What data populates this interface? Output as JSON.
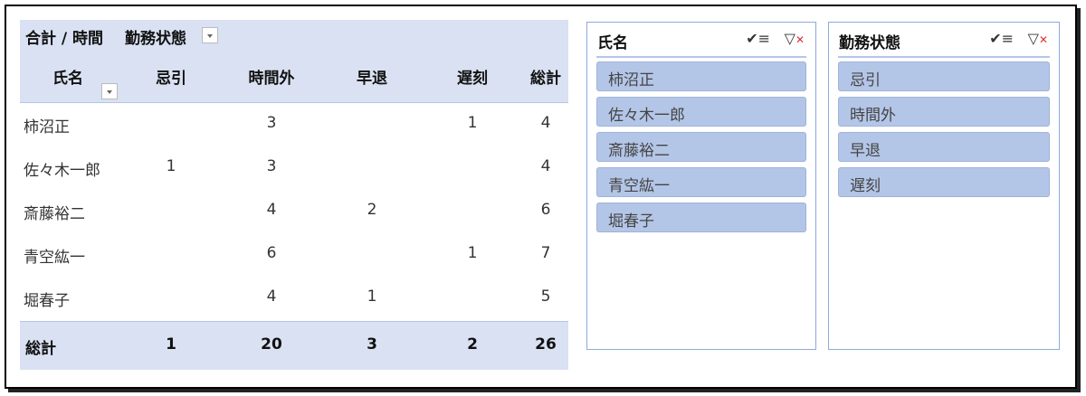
{
  "pivot": {
    "value_label": "合計 / 時間",
    "column_field": "勤務状態",
    "row_field": "氏名",
    "columns": [
      "忌引",
      "時間外",
      "早退",
      "遅刻",
      "総計"
    ],
    "rows": [
      {
        "name": "柿沼正",
        "values": [
          "",
          "3",
          "",
          "1",
          "4"
        ]
      },
      {
        "name": "佐々木一郎",
        "values": [
          "1",
          "3",
          "",
          "",
          "4"
        ]
      },
      {
        "name": "斎藤裕二",
        "values": [
          "",
          "4",
          "2",
          "",
          "6"
        ]
      },
      {
        "name": "青空紘一",
        "values": [
          "",
          "6",
          "",
          "1",
          "7"
        ]
      },
      {
        "name": "堀春子",
        "values": [
          "",
          "4",
          "1",
          "",
          "5"
        ]
      }
    ],
    "total_label": "総計",
    "totals": [
      "1",
      "20",
      "3",
      "2",
      "26"
    ]
  },
  "slicers": [
    {
      "title": "氏名",
      "items": [
        "柿沼正",
        "佐々木一郎",
        "斎藤裕二",
        "青空紘一",
        "堀春子"
      ]
    },
    {
      "title": "勤務状態",
      "items": [
        "忌引",
        "時間外",
        "早退",
        "遅刻"
      ]
    }
  ],
  "icons": {
    "multi_select": "multi-select-icon",
    "clear_filter": "clear-filter-icon"
  }
}
